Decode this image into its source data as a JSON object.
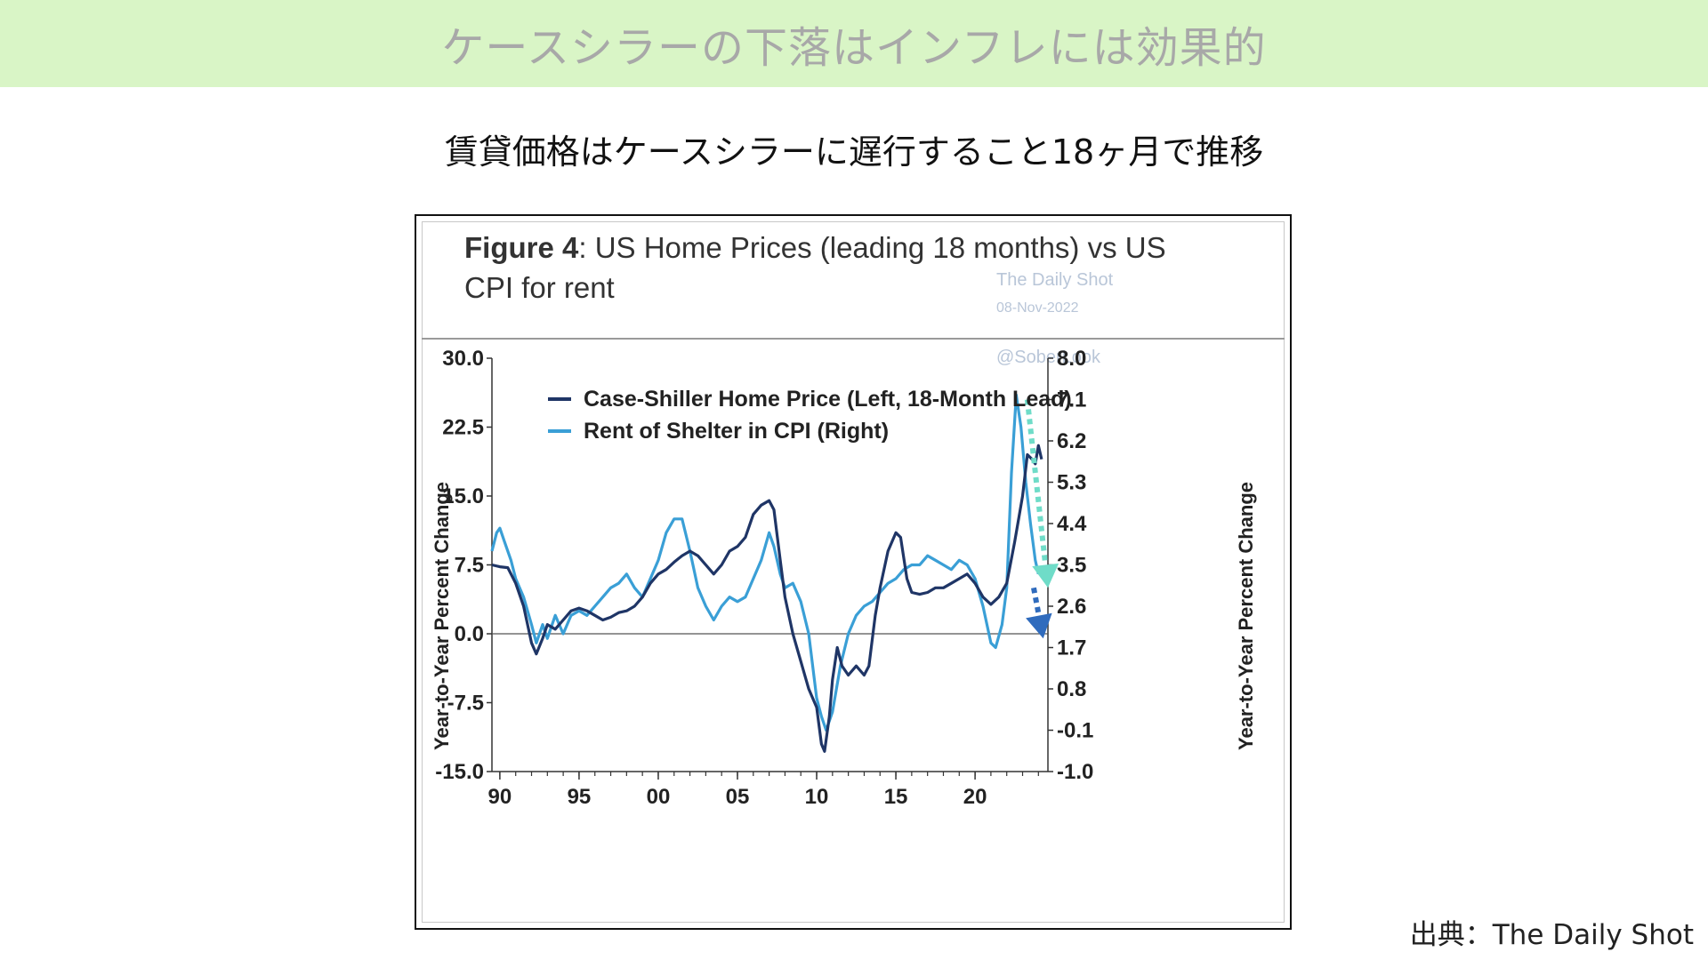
{
  "banner": {
    "title": "ケースシラーの下落はインフレには効果的",
    "background": "#d9f5c6"
  },
  "subtitle": "賃貸価格はケースシラーに遅行すること18ヶ月で推移",
  "source": "出典：The Daily Shot",
  "chart_data": {
    "type": "line",
    "title_bold": "Figure 4",
    "title_rest": ": US Home Prices (leading 18 months) vs US",
    "title_line2": "CPI for rent",
    "watermark": {
      "line1": "The Daily Shot",
      "line2": "08-Nov-2022",
      "line3": "@SoberLook"
    },
    "ylabel_left": "Year-to-Year Percent Change",
    "ylabel_right": "Year-to-Year Percent Change",
    "ylim_left": [
      -15,
      30
    ],
    "ylim_right": [
      -1,
      8
    ],
    "xlim": [
      1989.5,
      2024.6
    ],
    "x_ticks": [
      {
        "value": 1990,
        "label": "90"
      },
      {
        "value": 1995,
        "label": "95"
      },
      {
        "value": 2000,
        "label": "00"
      },
      {
        "value": 2005,
        "label": "05"
      },
      {
        "value": 2010,
        "label": "10"
      },
      {
        "value": 2015,
        "label": "15"
      },
      {
        "value": 2020,
        "label": "20"
      }
    ],
    "y_ticks_left": [
      "30.0",
      "22.5",
      "15.0",
      "7.5",
      "0.0",
      "-7.5",
      "-15.0"
    ],
    "y_ticks_right": [
      "8.0",
      "7.1",
      "6.2",
      "5.3",
      "4.4",
      "3.5",
      "2.6",
      "1.7",
      "0.8",
      "-0.1",
      "-1.0"
    ],
    "legend_placement": "top-left",
    "series": [
      {
        "name": "Case-Shiller Home Price (Left, 18-Month Lead)",
        "axis": "left",
        "color": "#1f3566",
        "points": [
          [
            1989.5,
            7.5
          ],
          [
            1990.0,
            7.3
          ],
          [
            1990.5,
            7.2
          ],
          [
            1991.0,
            5.5
          ],
          [
            1991.5,
            3.0
          ],
          [
            1992.0,
            -1.0
          ],
          [
            1992.3,
            -2.2
          ],
          [
            1992.7,
            -0.5
          ],
          [
            1993.0,
            1.0
          ],
          [
            1993.5,
            0.5
          ],
          [
            1994.0,
            1.5
          ],
          [
            1994.5,
            2.5
          ],
          [
            1995.0,
            2.8
          ],
          [
            1995.5,
            2.5
          ],
          [
            1996.0,
            2.0
          ],
          [
            1996.5,
            1.5
          ],
          [
            1997.0,
            1.8
          ],
          [
            1997.5,
            2.3
          ],
          [
            1998.0,
            2.5
          ],
          [
            1998.5,
            3.0
          ],
          [
            1999.0,
            4.0
          ],
          [
            1999.5,
            5.5
          ],
          [
            2000.0,
            6.5
          ],
          [
            2000.5,
            7.0
          ],
          [
            2001.0,
            7.8
          ],
          [
            2001.5,
            8.5
          ],
          [
            2002.0,
            9.0
          ],
          [
            2002.5,
            8.5
          ],
          [
            2003.0,
            7.5
          ],
          [
            2003.5,
            6.5
          ],
          [
            2004.0,
            7.5
          ],
          [
            2004.5,
            9.0
          ],
          [
            2005.0,
            9.5
          ],
          [
            2005.5,
            10.5
          ],
          [
            2006.0,
            13.0
          ],
          [
            2006.5,
            14.0
          ],
          [
            2007.0,
            14.5
          ],
          [
            2007.3,
            13.5
          ],
          [
            2007.7,
            8.0
          ],
          [
            2008.0,
            4.0
          ],
          [
            2008.5,
            0.0
          ],
          [
            2009.0,
            -3.0
          ],
          [
            2009.5,
            -6.0
          ],
          [
            2010.0,
            -8.0
          ],
          [
            2010.3,
            -12.0
          ],
          [
            2010.5,
            -12.8
          ],
          [
            2010.8,
            -9.0
          ],
          [
            2011.0,
            -5.0
          ],
          [
            2011.3,
            -1.5
          ],
          [
            2011.6,
            -3.5
          ],
          [
            2012.0,
            -4.5
          ],
          [
            2012.5,
            -3.5
          ],
          [
            2013.0,
            -4.5
          ],
          [
            2013.3,
            -3.5
          ],
          [
            2013.7,
            2.0
          ],
          [
            2014.0,
            5.0
          ],
          [
            2014.5,
            9.0
          ],
          [
            2015.0,
            11.0
          ],
          [
            2015.3,
            10.5
          ],
          [
            2015.7,
            6.0
          ],
          [
            2016.0,
            4.5
          ],
          [
            2016.5,
            4.3
          ],
          [
            2017.0,
            4.5
          ],
          [
            2017.5,
            5.0
          ],
          [
            2018.0,
            5.0
          ],
          [
            2018.5,
            5.5
          ],
          [
            2019.0,
            6.0
          ],
          [
            2019.5,
            6.5
          ],
          [
            2020.0,
            5.5
          ],
          [
            2020.5,
            4.0
          ],
          [
            2021.0,
            3.2
          ],
          [
            2021.5,
            4.0
          ],
          [
            2022.0,
            5.5
          ],
          [
            2022.5,
            10.0
          ],
          [
            2023.0,
            15.0
          ],
          [
            2023.3,
            19.5
          ],
          [
            2023.6,
            19.0
          ],
          [
            2023.8,
            18.5
          ],
          [
            2024.0,
            20.5
          ],
          [
            2024.2,
            19.0
          ]
        ]
      },
      {
        "name": "Rent of Shelter in CPI (Right)",
        "axis": "right",
        "color": "#3a9fd6",
        "points": [
          [
            1989.5,
            3.8
          ],
          [
            1989.8,
            4.2
          ],
          [
            1990.0,
            4.3
          ],
          [
            1990.3,
            4.0
          ],
          [
            1990.7,
            3.6
          ],
          [
            1991.0,
            3.2
          ],
          [
            1991.5,
            2.8
          ],
          [
            1992.0,
            2.2
          ],
          [
            1992.3,
            1.8
          ],
          [
            1992.7,
            2.2
          ],
          [
            1993.0,
            1.9
          ],
          [
            1993.5,
            2.4
          ],
          [
            1994.0,
            2.0
          ],
          [
            1994.5,
            2.4
          ],
          [
            1995.0,
            2.5
          ],
          [
            1995.5,
            2.4
          ],
          [
            1996.0,
            2.6
          ],
          [
            1996.5,
            2.8
          ],
          [
            1997.0,
            3.0
          ],
          [
            1997.5,
            3.1
          ],
          [
            1998.0,
            3.3
          ],
          [
            1998.5,
            3.0
          ],
          [
            1999.0,
            2.8
          ],
          [
            1999.5,
            3.2
          ],
          [
            2000.0,
            3.6
          ],
          [
            2000.5,
            4.2
          ],
          [
            2001.0,
            4.5
          ],
          [
            2001.5,
            4.5
          ],
          [
            2002.0,
            3.8
          ],
          [
            2002.5,
            3.0
          ],
          [
            2003.0,
            2.6
          ],
          [
            2003.5,
            2.3
          ],
          [
            2004.0,
            2.6
          ],
          [
            2004.5,
            2.8
          ],
          [
            2005.0,
            2.7
          ],
          [
            2005.5,
            2.8
          ],
          [
            2006.0,
            3.2
          ],
          [
            2006.5,
            3.6
          ],
          [
            2007.0,
            4.2
          ],
          [
            2007.3,
            3.9
          ],
          [
            2007.7,
            3.3
          ],
          [
            2008.0,
            3.0
          ],
          [
            2008.5,
            3.1
          ],
          [
            2009.0,
            2.7
          ],
          [
            2009.5,
            2.0
          ],
          [
            2010.0,
            0.6
          ],
          [
            2010.3,
            0.2
          ],
          [
            2010.6,
            -0.1
          ],
          [
            2011.0,
            0.3
          ],
          [
            2011.5,
            1.3
          ],
          [
            2012.0,
            2.0
          ],
          [
            2012.5,
            2.4
          ],
          [
            2013.0,
            2.6
          ],
          [
            2013.5,
            2.7
          ],
          [
            2014.0,
            2.9
          ],
          [
            2014.5,
            3.1
          ],
          [
            2015.0,
            3.2
          ],
          [
            2015.5,
            3.4
          ],
          [
            2016.0,
            3.5
          ],
          [
            2016.5,
            3.5
          ],
          [
            2017.0,
            3.7
          ],
          [
            2017.5,
            3.6
          ],
          [
            2018.0,
            3.5
          ],
          [
            2018.5,
            3.4
          ],
          [
            2019.0,
            3.6
          ],
          [
            2019.5,
            3.5
          ],
          [
            2020.0,
            3.2
          ],
          [
            2020.5,
            2.6
          ],
          [
            2021.0,
            1.8
          ],
          [
            2021.3,
            1.7
          ],
          [
            2021.7,
            2.2
          ],
          [
            2022.0,
            3.0
          ],
          [
            2022.3,
            5.5
          ],
          [
            2022.6,
            7.2
          ],
          [
            2022.9,
            6.5
          ],
          [
            2023.2,
            5.3
          ],
          [
            2023.5,
            4.4
          ],
          [
            2023.8,
            3.6
          ],
          [
            2024.0,
            3.3
          ]
        ]
      }
    ],
    "annotations": [
      {
        "type": "dotted-arrow",
        "color": "#2f6bbd",
        "from": [
          2023.7,
          5.0
        ],
        "to": [
          2024.3,
          -0.5
        ],
        "axis": "left"
      },
      {
        "type": "dotted-arrow",
        "color": "#6fdcc8",
        "from": [
          2023.3,
          7.1
        ],
        "to": [
          2024.6,
          3.0
        ],
        "axis": "right"
      }
    ]
  }
}
